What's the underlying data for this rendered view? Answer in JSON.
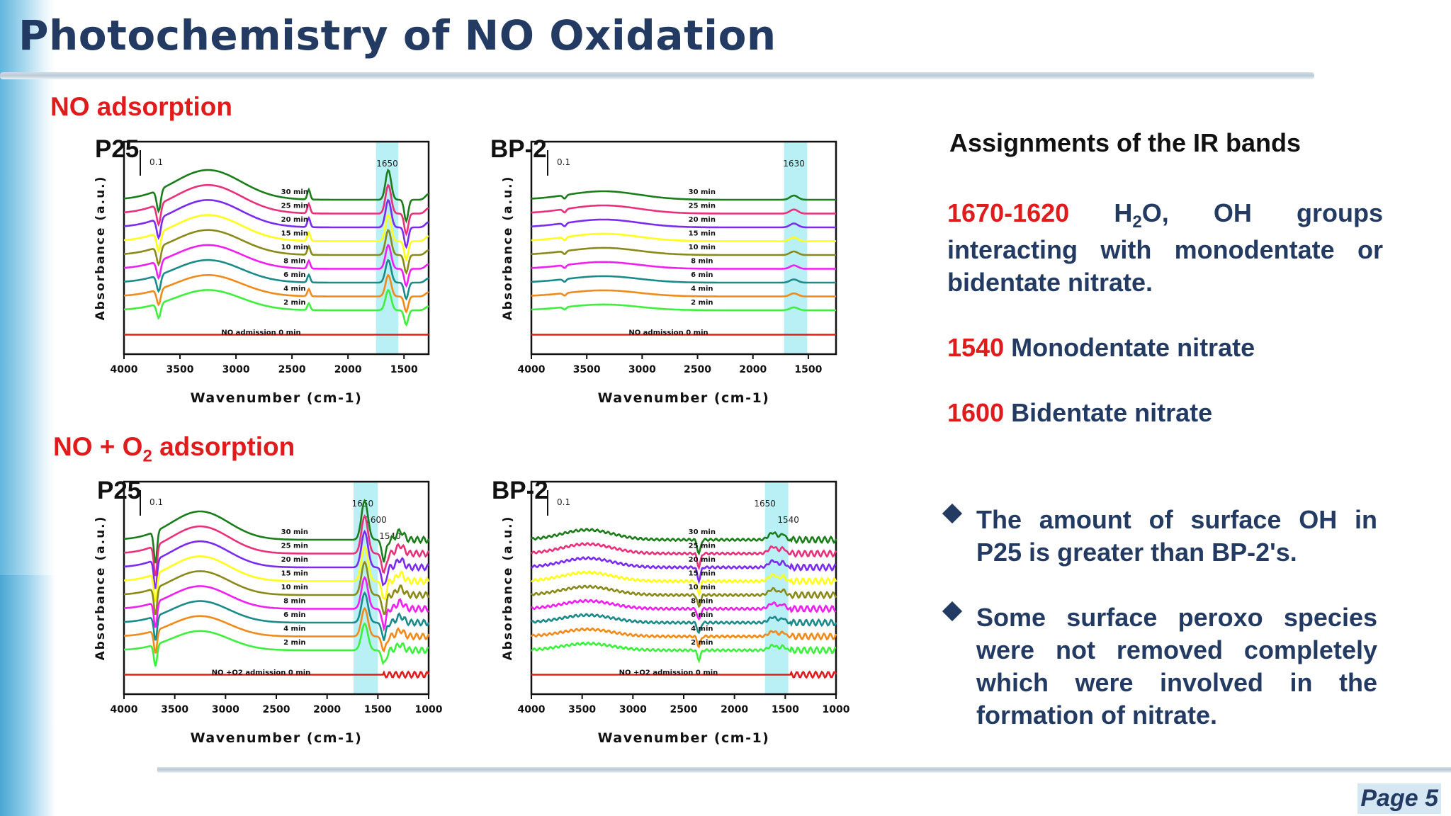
{
  "title": "Photochemistry of NO Oxidation",
  "sections": {
    "no": "NO adsorption",
    "no_o2_prefix": "NO + O",
    "no_o2_sub": "2",
    "no_o2_suffix": " adsorption"
  },
  "assignments": {
    "title": "Assignments of the IR bands",
    "item1_num": "1670-1620",
    "item1_line1_rest": "H",
    "item1_sub": "2",
    "item1_line1_tail": "O,  OH  groups",
    "item1_line2": "interacting with monodentate or",
    "item1_line3": "bidentate nitrate.",
    "item2_num": "1540",
    "item2_text": " Monodentate nitrate",
    "item3_num": "1600",
    "item3_text": " Bidentate nitrate"
  },
  "bullets": [
    "The amount of surface OH in P25 is greater than BP-2's.",
    "Some surface peroxo species were not removed completely which were involved in the formation of nitrate."
  ],
  "page_label": "Page 5",
  "colors": {
    "title": "#233a63",
    "accent_red": "#e01b1b",
    "highlight_band": "#b9f0f6",
    "series": [
      "#1a7d1a",
      "#e8317a",
      "#7b2bf0",
      "#ffff1a",
      "#8a8a1a",
      "#f01ef0",
      "#1a8a8a",
      "#f08a1a",
      "#3cf03c",
      "#e01b1b"
    ]
  },
  "chart_data": [
    {
      "id": "p25_no",
      "type": "line",
      "panel_label": "P25",
      "xlabel": "Wavenumber (cm-1)",
      "ylabel": "Absorbance (a.u.)",
      "scale_bar_label": "0.1",
      "xlim": [
        4000,
        1280
      ],
      "x_ticks": [
        4000,
        3500,
        3000,
        2500,
        2000,
        1500
      ],
      "highlight": {
        "from": 1750,
        "to": 1550,
        "labels": [
          {
            "text": "1650",
            "x": 1650
          }
        ]
      },
      "series": [
        {
          "name": "30 min",
          "color": "#1a7d1a"
        },
        {
          "name": "25 min",
          "color": "#e8317a"
        },
        {
          "name": "20 min",
          "color": "#7b2bf0"
        },
        {
          "name": "15 min",
          "color": "#ffff1a"
        },
        {
          "name": "10 min",
          "color": "#8a8a1a"
        },
        {
          "name": "8 min",
          "color": "#f01ef0"
        },
        {
          "name": "6 min",
          "color": "#1a8a8a"
        },
        {
          "name": "4 min",
          "color": "#f08a1a"
        },
        {
          "name": "2 min",
          "color": "#3cf03c"
        },
        {
          "name": "NO admission 0 min",
          "color": "#e01b1b"
        }
      ]
    },
    {
      "id": "bp2_no",
      "type": "line",
      "panel_label": "BP-2",
      "xlabel": "Wavenumber (cm-1)",
      "ylabel": "Absorbance (a.u.)",
      "scale_bar_label": "0.1",
      "xlim": [
        4000,
        1250
      ],
      "x_ticks": [
        4000,
        3500,
        3000,
        2500,
        2000,
        1500
      ],
      "highlight": {
        "from": 1720,
        "to": 1510,
        "labels": [
          {
            "text": "1630",
            "x": 1630
          }
        ]
      },
      "series": [
        {
          "name": "30 min",
          "color": "#1a7d1a"
        },
        {
          "name": "25 min",
          "color": "#e8317a"
        },
        {
          "name": "20 min",
          "color": "#7b2bf0"
        },
        {
          "name": "15 min",
          "color": "#ffff1a"
        },
        {
          "name": "10 min",
          "color": "#8a8a1a"
        },
        {
          "name": "8 min",
          "color": "#f01ef0"
        },
        {
          "name": "6 min",
          "color": "#1a8a8a"
        },
        {
          "name": "4 min",
          "color": "#f08a1a"
        },
        {
          "name": "2 min",
          "color": "#3cf03c"
        },
        {
          "name": "NO admission 0 min",
          "color": "#e01b1b"
        }
      ]
    },
    {
      "id": "p25_no_o2",
      "type": "line",
      "panel_label": "P25",
      "xlabel": "Wavenumber (cm-1)",
      "ylabel": "Absorbance (a.u.)",
      "scale_bar_label": "0.1",
      "xlim": [
        4000,
        1000
      ],
      "x_ticks": [
        4000,
        3500,
        3000,
        2500,
        2000,
        1500,
        1000
      ],
      "highlight": {
        "from": 1740,
        "to": 1500,
        "labels": [
          {
            "text": "1650",
            "x": 1650
          },
          {
            "text": "1600",
            "x": 1520
          },
          {
            "text": "1540",
            "x": 1380
          }
        ]
      },
      "series": [
        {
          "name": "30 min",
          "color": "#1a7d1a"
        },
        {
          "name": "25 min",
          "color": "#e8317a"
        },
        {
          "name": "20 min",
          "color": "#7b2bf0"
        },
        {
          "name": "15 min",
          "color": "#ffff1a"
        },
        {
          "name": "10 min",
          "color": "#8a8a1a"
        },
        {
          "name": "8 min",
          "color": "#f01ef0"
        },
        {
          "name": "6 min",
          "color": "#1a8a8a"
        },
        {
          "name": "4 min",
          "color": "#f08a1a"
        },
        {
          "name": "2 min",
          "color": "#3cf03c"
        },
        {
          "name": "NO +O2 admission 0 min",
          "color": "#e01b1b"
        }
      ]
    },
    {
      "id": "bp2_no_o2",
      "type": "line",
      "panel_label": "BP-2",
      "xlabel": "Wavenumber (cm-1)",
      "ylabel": "Absorbance (a.u.)",
      "scale_bar_label": "0.1",
      "xlim": [
        4000,
        1000
      ],
      "x_ticks": [
        4000,
        3500,
        3000,
        2500,
        2000,
        1500,
        1000
      ],
      "highlight": {
        "from": 1700,
        "to": 1470,
        "labels": [
          {
            "text": "1650",
            "x": 1700
          },
          {
            "text": "1540",
            "x": 1470
          }
        ]
      },
      "series": [
        {
          "name": "30 min",
          "color": "#1a7d1a"
        },
        {
          "name": "25 min",
          "color": "#e8317a"
        },
        {
          "name": "20 min",
          "color": "#7b2bf0"
        },
        {
          "name": "15 min",
          "color": "#ffff1a"
        },
        {
          "name": "10 min",
          "color": "#8a8a1a"
        },
        {
          "name": "8 min",
          "color": "#f01ef0"
        },
        {
          "name": "6 min",
          "color": "#1a8a8a"
        },
        {
          "name": "4 min",
          "color": "#f08a1a"
        },
        {
          "name": "2 min",
          "color": "#3cf03c"
        },
        {
          "name": "NO +O2 admission 0 min",
          "color": "#e01b1b"
        }
      ]
    }
  ]
}
